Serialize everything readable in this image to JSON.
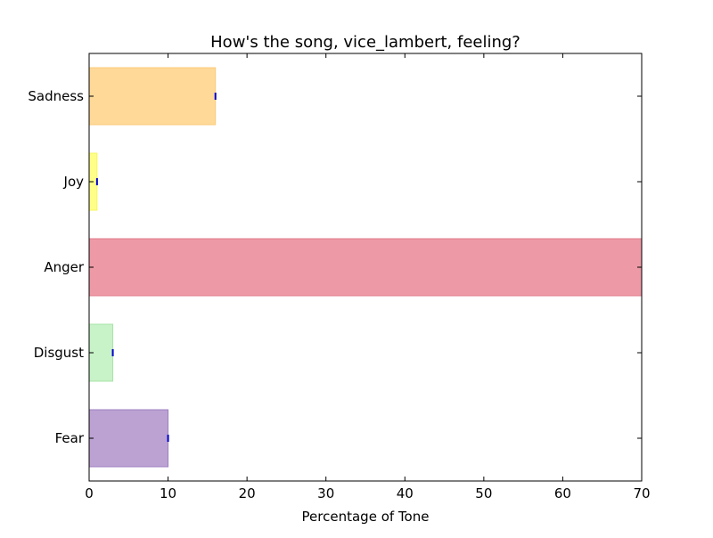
{
  "chart_data": {
    "type": "bar",
    "orientation": "horizontal",
    "title": "How's the song, vice_lambert, feeling?",
    "xlabel": "Percentage of Tone",
    "ylabel": "",
    "xlim": [
      0,
      70
    ],
    "xticks": [
      0,
      10,
      20,
      30,
      40,
      50,
      60,
      70
    ],
    "grid": false,
    "categories": [
      "Fear",
      "Disgust",
      "Anger",
      "Joy",
      "Sadness"
    ],
    "values": [
      10,
      3,
      70,
      1,
      16
    ],
    "colors": [
      "#BBA2D2",
      "#C8F2C8",
      "#EE9AA6",
      "#FFFF88",
      "#FED998"
    ],
    "edge_colors": [
      "#9C7FC0",
      "#A8E4A8",
      "#E07A8A",
      "#F5F560",
      "#FCCB7A"
    ],
    "error_marker_color": "#0000CC"
  }
}
